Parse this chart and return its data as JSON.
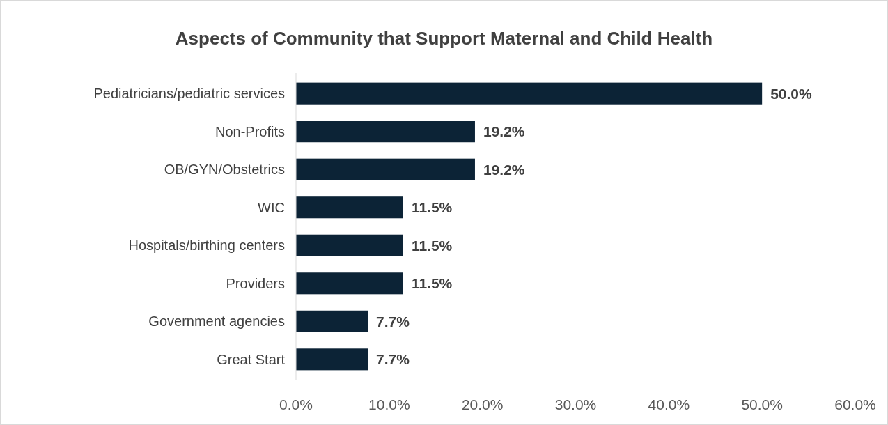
{
  "chart_data": {
    "type": "bar",
    "orientation": "horizontal",
    "title": "Aspects of Community that Support Maternal and Child Health",
    "categories": [
      "Pediatricians/pediatric services",
      "Non-Profits",
      "OB/GYN/Obstetrics",
      "WIC",
      "Hospitals/birthing centers",
      "Providers",
      "Government agencies",
      "Great Start"
    ],
    "values": [
      50.0,
      19.2,
      19.2,
      11.5,
      11.5,
      11.5,
      7.7,
      7.7
    ],
    "value_labels": [
      "50.0%",
      "19.2%",
      "19.2%",
      "11.5%",
      "11.5%",
      "11.5%",
      "7.7%",
      "7.7%"
    ],
    "color": "#0c2336",
    "xlim": [
      0,
      60
    ],
    "xticks": [
      {
        "value": 0,
        "label": "0.0%"
      },
      {
        "value": 10,
        "label": "10.0%"
      },
      {
        "value": 20,
        "label": "20.0%"
      },
      {
        "value": 30,
        "label": "30.0%"
      },
      {
        "value": 40,
        "label": "40.0%"
      },
      {
        "value": 50,
        "label": "50.0%"
      },
      {
        "value": 60,
        "label": "60.0%"
      }
    ],
    "grid": false
  }
}
